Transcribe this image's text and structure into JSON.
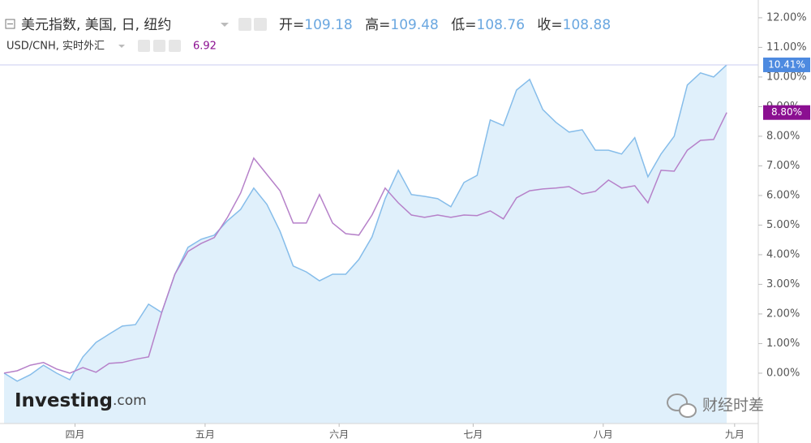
{
  "chart_data": {
    "type": "area-line",
    "series": [
      {
        "name": "美元指数, 美国, 日, 纽约",
        "color": "#86bdea",
        "fill": "#e0f0fb",
        "ohlc": [
          {
            "label": "开=",
            "value": 109.18
          },
          {
            "label": "高=",
            "value": 109.48
          },
          {
            "label": "低=",
            "value": 108.76
          },
          {
            "label": "收=",
            "value": 108.88
          }
        ],
        "end_label": "10.41%",
        "end_color": "#4d8ae0",
        "values": [
          0.0,
          -0.27,
          -0.05,
          0.27,
          0.0,
          -0.22,
          0.55,
          1.04,
          1.32,
          1.59,
          1.64,
          2.33,
          2.05,
          3.34,
          4.25,
          4.52,
          4.66,
          5.15,
          5.53,
          6.25,
          5.7,
          4.79,
          3.62,
          3.42,
          3.12,
          3.34,
          3.34,
          3.84,
          4.6,
          5.89,
          6.85,
          6.03,
          5.97,
          5.89,
          5.62,
          6.44,
          6.68,
          8.55,
          8.36,
          9.56,
          9.92,
          8.9,
          8.47,
          8.14,
          8.22,
          7.53,
          7.53,
          7.4,
          7.95,
          6.63,
          7.4,
          8.0,
          9.73,
          10.14,
          10.0,
          10.41
        ]
      },
      {
        "name": "USD/CNH, 实时外汇",
        "color": "#b681c9",
        "last_price": 6.92,
        "price_color": "#8b0f91",
        "end_label": "8.80%",
        "end_color": "#8b0f91",
        "values": [
          0.0,
          0.08,
          0.27,
          0.36,
          0.14,
          0.0,
          0.19,
          0.03,
          0.33,
          0.36,
          0.47,
          0.55,
          2.05,
          3.34,
          4.11,
          4.38,
          4.58,
          5.26,
          6.08,
          7.26,
          6.71,
          6.16,
          5.07,
          5.07,
          6.03,
          5.07,
          4.71,
          4.66,
          5.34,
          6.25,
          5.75,
          5.34,
          5.26,
          5.34,
          5.26,
          5.34,
          5.32,
          5.48,
          5.21,
          5.92,
          6.16,
          6.22,
          6.25,
          6.3,
          6.05,
          6.14,
          6.52,
          6.25,
          6.33,
          5.75,
          6.85,
          6.82,
          7.53,
          7.86,
          7.89,
          8.8
        ]
      }
    ],
    "xlim": [
      -0.31,
      57.4
    ],
    "xticks": [
      {
        "value": 5.4,
        "label": "四月"
      },
      {
        "value": 15.3,
        "label": "五月"
      },
      {
        "value": 25.5,
        "label": "六月"
      },
      {
        "value": 35.7,
        "label": "七月"
      },
      {
        "value": 45.6,
        "label": "八月"
      },
      {
        "value": 55.6,
        "label": "九月"
      }
    ],
    "ylim": [
      -1.7,
      12.6
    ],
    "yticks": [
      {
        "value": 0,
        "label": "0.00%"
      },
      {
        "value": 1,
        "label": "1.00%"
      },
      {
        "value": 2,
        "label": "2.00%"
      },
      {
        "value": 3,
        "label": "3.00%"
      },
      {
        "value": 4,
        "label": "4.00%"
      },
      {
        "value": 5,
        "label": "5.00%"
      },
      {
        "value": 6,
        "label": "6.00%"
      },
      {
        "value": 7,
        "label": "7.00%"
      },
      {
        "value": 8,
        "label": "8.00%"
      },
      {
        "value": 9,
        "label": "9.00%"
      },
      {
        "value": 10,
        "label": "10.00%"
      },
      {
        "value": 11,
        "label": "11.00%"
      },
      {
        "value": 12,
        "label": "12.00%"
      }
    ],
    "annotations": {
      "logo": "Investing",
      "logo_suffix": ".com",
      "watermark": "财经时差"
    }
  }
}
